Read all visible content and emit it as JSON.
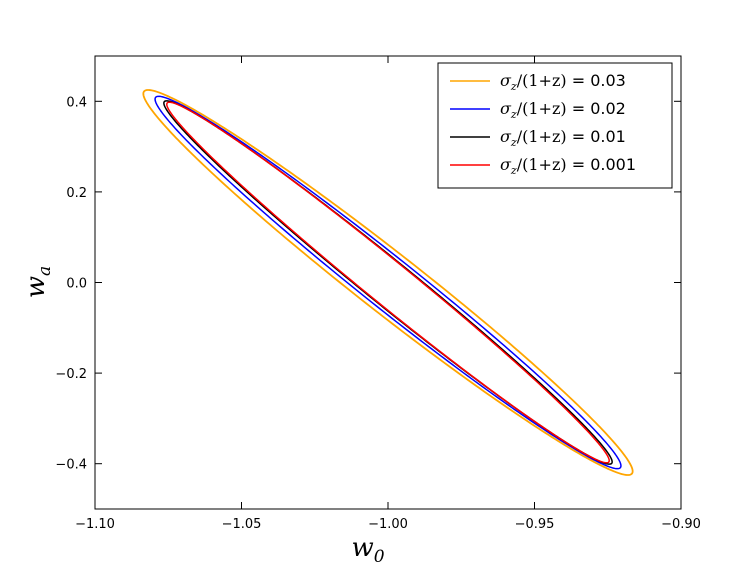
{
  "chart_data": {
    "type": "line",
    "title": "",
    "xlabel": "w",
    "xlabel_sub": "0",
    "ylabel": "w",
    "ylabel_sub": "a",
    "xlim": [
      -1.1,
      -0.9
    ],
    "ylim": [
      -0.5,
      0.5
    ],
    "xticks": [
      -1.1,
      -1.05,
      -1.0,
      -0.95,
      -0.9
    ],
    "xtick_labels": [
      "−1.10",
      "−1.05",
      "−1.00",
      "−0.95",
      "−0.90"
    ],
    "yticks": [
      -0.4,
      -0.2,
      0.0,
      0.2,
      0.4
    ],
    "ytick_labels": [
      "−0.4",
      "−0.2",
      "0.0",
      "0.2",
      "0.4"
    ],
    "grid": false,
    "legend_position": "top-right",
    "series": [
      {
        "name": "σz/(1+z) = 0.03",
        "legend_math": "σ",
        "legend_sub": "z",
        "legend_rest": "/(1+z)",
        "legend_value": " = 0.03",
        "color": "#FFA500",
        "center": [
          -1.0,
          0.0
        ],
        "x_extent": [
          -1.0835,
          -0.9165
        ],
        "y_extent": [
          -0.425,
          0.425
        ],
        "correlation": -0.9805
      },
      {
        "name": "σz/(1+z) = 0.02",
        "legend_math": "σ",
        "legend_sub": "z",
        "legend_rest": "/(1+z)",
        "legend_value": " = 0.02",
        "color": "#0000FF",
        "center": [
          -1.0,
          0.0
        ],
        "x_extent": [
          -1.0795,
          -0.9205
        ],
        "y_extent": [
          -0.411,
          0.411
        ],
        "correlation": -0.9845
      },
      {
        "name": "σz/(1+z) = 0.01",
        "legend_math": "σ",
        "legend_sub": "z",
        "legend_rest": "/(1+z)",
        "legend_value": " = 0.01",
        "color": "#000000",
        "center": [
          -1.0,
          0.0
        ],
        "x_extent": [
          -1.0765,
          -0.9235
        ],
        "y_extent": [
          -0.401,
          0.401
        ],
        "correlation": -0.9875
      },
      {
        "name": "σz/(1+z) = 0.001",
        "legend_math": "σ",
        "legend_sub": "z",
        "legend_rest": "/(1+z)",
        "legend_value": " = 0.001",
        "color": "#FF0000",
        "center": [
          -1.0,
          0.0
        ],
        "x_extent": [
          -1.0755,
          -0.9245
        ],
        "y_extent": [
          -0.398,
          0.398
        ],
        "correlation": -0.988
      }
    ]
  }
}
